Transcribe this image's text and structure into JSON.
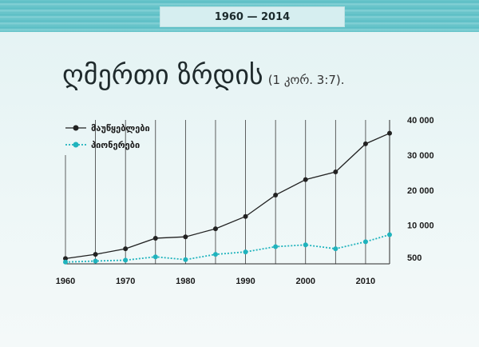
{
  "header": {
    "badge": "1960 — 2014"
  },
  "title": {
    "main": "ღმერთი ზრდის",
    "ref": "(1 კორ. 3:7)."
  },
  "chart_data": {
    "type": "line",
    "x": [
      1960,
      1965,
      1970,
      1975,
      1980,
      1985,
      1990,
      1995,
      2000,
      2005,
      2010,
      2014
    ],
    "series": [
      {
        "name": "მაუწყებლები",
        "values": [
          500,
          1700,
          3300,
          6300,
          6700,
          9000,
          12500,
          18600,
          23000,
          25200,
          33200,
          36200
        ],
        "color": "#222222",
        "style": "solid"
      },
      {
        "name": "პიონერები",
        "values": [
          -500,
          -200,
          50,
          1000,
          200,
          1700,
          2400,
          3900,
          4400,
          3300,
          5300,
          7300
        ],
        "color": "#1fb3bd",
        "style": "dotted"
      }
    ],
    "x_ticks": [
      1960,
      1970,
      1980,
      1990,
      2000,
      2010
    ],
    "y_ticks": [
      {
        "value": 500,
        "label": "500"
      },
      {
        "value": 10000,
        "label": "10 000"
      },
      {
        "value": 20000,
        "label": "20 000"
      },
      {
        "value": 30000,
        "label": "30 000"
      },
      {
        "value": 40000,
        "label": "40 000"
      }
    ],
    "xlim": [
      1960,
      2014
    ],
    "ylim": [
      -1000,
      40000
    ],
    "legend_position": "top-left",
    "vertical_gridlines": [
      1960,
      1965,
      1970,
      1975,
      1980,
      1985,
      1990,
      1995,
      2000,
      2005,
      2010
    ]
  }
}
